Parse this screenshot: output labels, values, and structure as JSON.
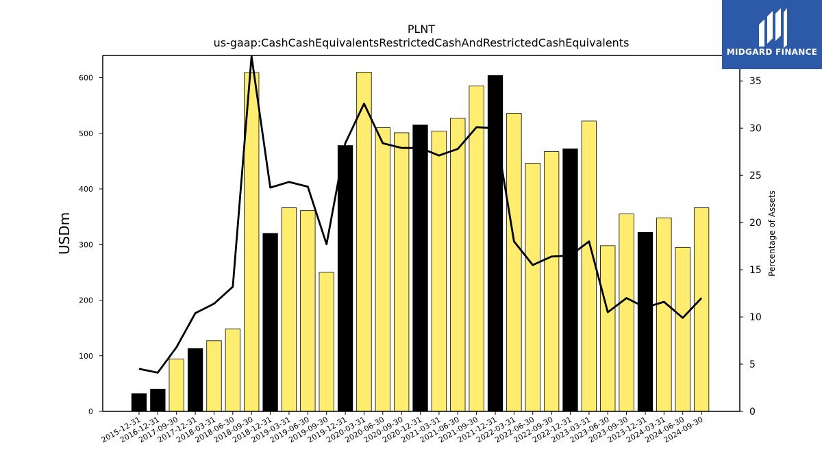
{
  "chart_data": {
    "type": "bar",
    "title": "PLNT",
    "subtitle": "us-gaap:CashCashEquivalentsRestrictedCashAndRestrictedCashEquivalents",
    "ylabel": "USDm",
    "y2label": "Percentage of Assets",
    "ylim": [
      0,
      640
    ],
    "y2lim": [
      0,
      37.7
    ],
    "yticks": [
      0,
      100,
      200,
      300,
      400,
      500,
      600
    ],
    "y2ticks": [
      0,
      5,
      10,
      15,
      20,
      25,
      30,
      35
    ],
    "categories": [
      "2015-12-31",
      "2016-12-31",
      "2017-09-30",
      "2017-12-31",
      "2018-03-31",
      "2018-06-30",
      "2018-09-30",
      "2018-12-31",
      "2019-03-31",
      "2019-06-30",
      "2019-09-30",
      "2019-12-31",
      "2020-03-31",
      "2020-06-30",
      "2020-09-30",
      "2020-12-31",
      "2021-03-31",
      "2021-06-30",
      "2021-09-30",
      "2021-12-31",
      "2022-03-31",
      "2022-06-30",
      "2022-09-30",
      "2022-12-31",
      "2023-03-31",
      "2023-06-30",
      "2023-09-30",
      "2023-12-31",
      "2024-03-31",
      "2024-06-30",
      "2024-09-30"
    ],
    "series": [
      {
        "type": "bar",
        "values": [
          32,
          40,
          94,
          113,
          127,
          148,
          609,
          320,
          366,
          361,
          250,
          478,
          610,
          510,
          501,
          515,
          504,
          527,
          585,
          604,
          536,
          446,
          467,
          472,
          522,
          298,
          355,
          322,
          348,
          295,
          366
        ],
        "is_year_end": [
          true,
          true,
          false,
          true,
          false,
          false,
          false,
          true,
          false,
          false,
          false,
          true,
          false,
          false,
          false,
          true,
          false,
          false,
          false,
          true,
          false,
          false,
          false,
          true,
          false,
          false,
          false,
          true,
          false,
          false,
          false
        ]
      },
      {
        "type": "line",
        "axis": "right",
        "values": [
          4.5,
          4.1,
          6.8,
          10.4,
          11.4,
          13.2,
          37.6,
          23.7,
          24.3,
          23.8,
          17.7,
          28.4,
          32.6,
          28.4,
          27.9,
          27.9,
          27.1,
          27.8,
          30.1,
          30.0,
          18.0,
          15.5,
          16.4,
          16.5,
          18.0,
          10.5,
          12.0,
          11.0,
          11.6,
          9.9,
          12.0
        ]
      }
    ],
    "colors": {
      "year_end_bar": "#000000",
      "quarter_bar": "#ffed6f",
      "bar_edge": "#000000",
      "line": "#000000"
    }
  },
  "logo": {
    "text": "MIDGARD FINANCE",
    "background": "#2c5aa8"
  }
}
